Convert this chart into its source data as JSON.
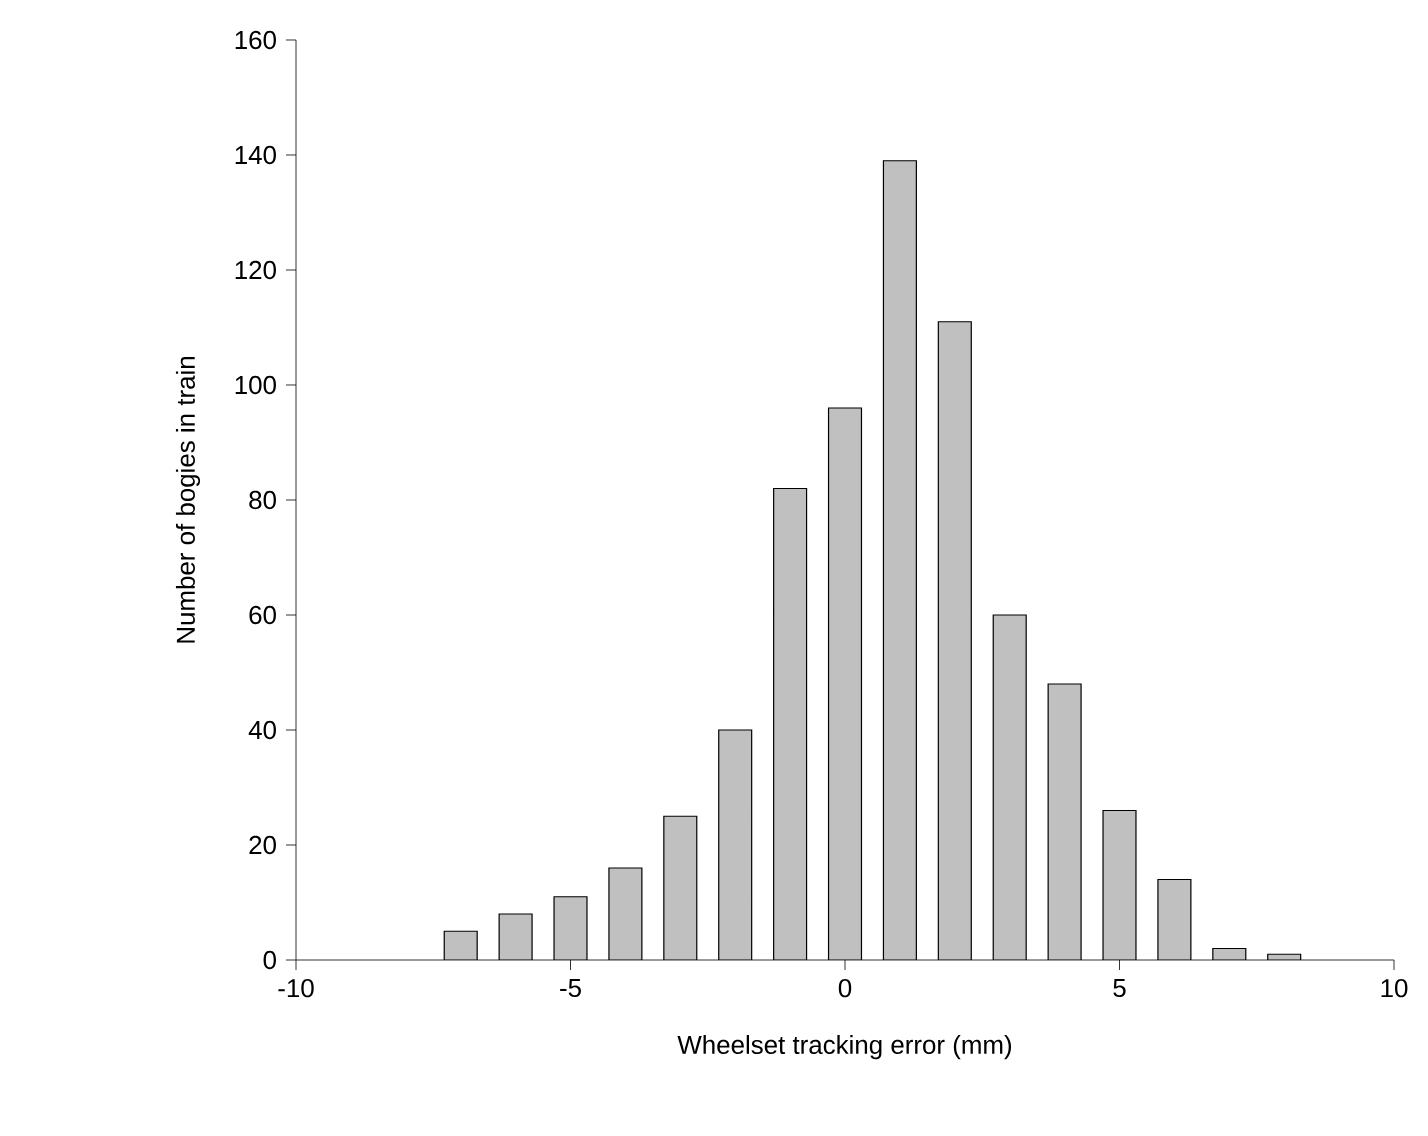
{
  "chart_data": {
    "type": "bar",
    "xlabel": "Wheelset tracking error (mm)",
    "ylabel": "Number of bogies in train",
    "x": [
      -7,
      -6,
      -5,
      -4,
      -3,
      -2,
      -1,
      0,
      1,
      2,
      3,
      4,
      5,
      6,
      7,
      8
    ],
    "values": [
      5,
      8,
      11,
      16,
      25,
      40,
      82,
      96,
      139,
      111,
      60,
      48,
      26,
      14,
      2,
      1
    ],
    "color": "#c0c0c0",
    "xlim": [
      -10,
      10
    ],
    "xticks": [
      -10,
      -5,
      0,
      5,
      10
    ],
    "ylim": [
      0,
      160
    ],
    "yticks": [
      0,
      20,
      40,
      60,
      80,
      100,
      120,
      140,
      160
    ],
    "grid": false
  }
}
